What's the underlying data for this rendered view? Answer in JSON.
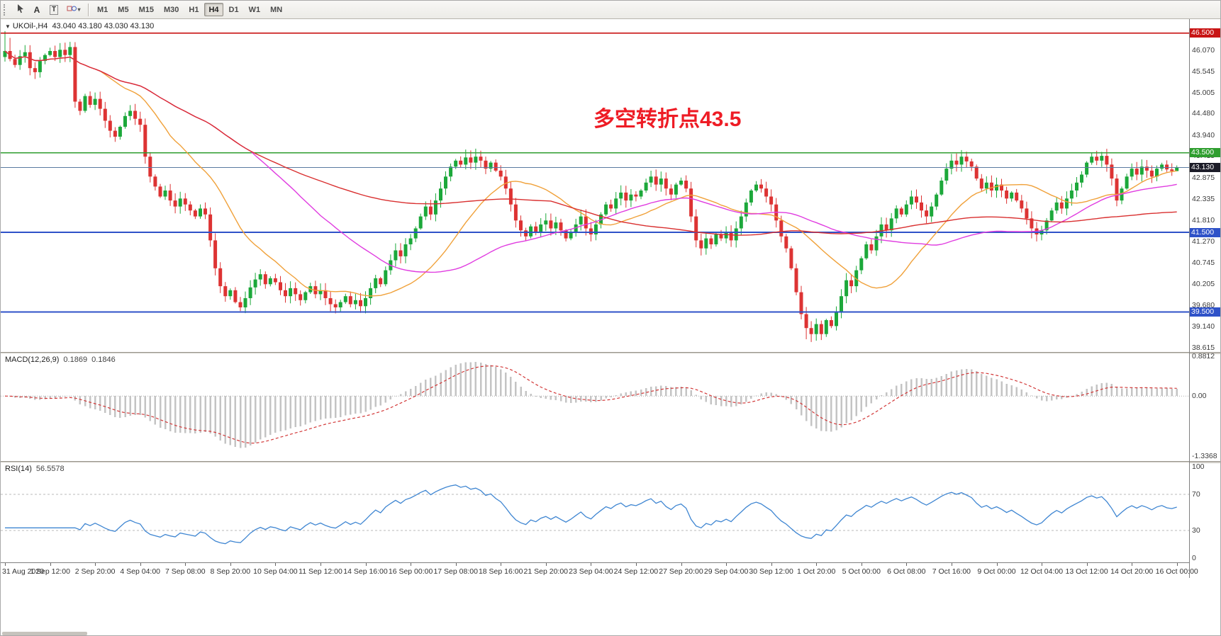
{
  "toolbar": {
    "text_tool_label": "A",
    "text_box_tool_label": "T",
    "timeframes": [
      {
        "label": "M1",
        "active": false
      },
      {
        "label": "M5",
        "active": false
      },
      {
        "label": "M15",
        "active": false
      },
      {
        "label": "M30",
        "active": false
      },
      {
        "label": "H1",
        "active": false
      },
      {
        "label": "H4",
        "active": true
      },
      {
        "label": "D1",
        "active": false
      },
      {
        "label": "W1",
        "active": false
      },
      {
        "label": "MN",
        "active": false
      }
    ]
  },
  "chart": {
    "symbol_label": "UKOil-,H4",
    "ohlc_text": "43.040 43.180 43.030 43.130",
    "annotation_text": "多空转折点43.5",
    "annotation_color": "#ee1c25",
    "price_axis_ticks": [
      "46.070",
      "45.545",
      "45.005",
      "44.480",
      "43.940",
      "43.415",
      "42.875",
      "42.335",
      "41.810",
      "41.270",
      "40.745",
      "40.205",
      "39.680",
      "39.140",
      "38.615"
    ],
    "price_badges": [
      {
        "label": "46.500",
        "price": 46.5,
        "color": "#c81414"
      },
      {
        "label": "43.500",
        "price": 43.5,
        "color": "#2f9e2f"
      },
      {
        "label": "43.130",
        "price": 43.13,
        "color": "#1c1c28"
      },
      {
        "label": "41.500",
        "price": 41.5,
        "color": "#2f52c8"
      },
      {
        "label": "39.500",
        "price": 39.5,
        "color": "#2f52c8"
      }
    ]
  },
  "macd": {
    "title": "MACD(12,26,9)",
    "value_main": "0.1869",
    "value_signal": "0.1846",
    "axis": [
      "0.8812",
      "0.00",
      "-1.3368"
    ]
  },
  "rsi": {
    "title": "RSI(14)",
    "value": "56.5578",
    "axis": [
      "100",
      "70",
      "30",
      "0"
    ]
  },
  "time_axis": {
    "labels": [
      "31 Aug 2020",
      "1 Sep 12:00",
      "2 Sep 20:00",
      "4 Sep 04:00",
      "7 Sep 08:00",
      "8 Sep 20:00",
      "10 Sep 04:00",
      "11 Sep 12:00",
      "14 Sep 16:00",
      "16 Sep 00:00",
      "17 Sep 08:00",
      "18 Sep 16:00",
      "21 Sep 20:00",
      "23 Sep 04:00",
      "24 Sep 12:00",
      "27 Sep 20:00",
      "29 Sep 04:00",
      "30 Sep 12:00",
      "1 Oct 20:00",
      "5 Oct 00:00",
      "6 Oct 08:00",
      "7 Oct 16:00",
      "9 Oct 00:00",
      "12 Oct 04:00",
      "13 Oct 12:00",
      "14 Oct 20:00",
      "16 Oct 00:00"
    ]
  },
  "chart_data": {
    "type": "candlestick",
    "symbol": "UKOil-",
    "timeframe": "H4",
    "bars": 235,
    "bars_per_time_label": 9,
    "first_open": 45.9,
    "closes": [
      46.05,
      45.85,
      45.7,
      45.92,
      46.02,
      45.62,
      45.52,
      45.8,
      45.95,
      46.05,
      45.9,
      46.08,
      45.95,
      46.15,
      44.78,
      44.55,
      44.92,
      44.7,
      44.85,
      44.6,
      44.3,
      44.05,
      43.9,
      44.15,
      44.42,
      44.55,
      44.35,
      44.2,
      43.4,
      42.9,
      42.65,
      42.4,
      42.55,
      42.3,
      42.15,
      42.35,
      42.2,
      42.05,
      41.9,
      42.1,
      41.95,
      41.3,
      40.6,
      40.15,
      39.9,
      40.05,
      39.75,
      39.62,
      39.85,
      40.12,
      40.32,
      40.45,
      40.2,
      40.35,
      40.25,
      40.05,
      39.9,
      40.1,
      39.95,
      39.8,
      40.0,
      40.15,
      39.95,
      40.05,
      39.85,
      39.7,
      39.62,
      39.75,
      39.9,
      39.7,
      39.8,
      39.65,
      39.85,
      40.1,
      40.35,
      40.2,
      40.55,
      40.8,
      41.05,
      40.9,
      41.2,
      41.35,
      41.6,
      41.9,
      42.15,
      41.95,
      42.3,
      42.6,
      42.9,
      43.15,
      43.3,
      43.2,
      43.38,
      43.25,
      43.4,
      43.3,
      43.1,
      43.25,
      43.05,
      42.9,
      42.6,
      42.2,
      41.8,
      41.55,
      41.4,
      41.65,
      41.5,
      41.7,
      41.8,
      41.6,
      41.75,
      41.55,
      41.35,
      41.5,
      41.7,
      41.9,
      41.6,
      41.45,
      41.7,
      41.95,
      42.2,
      42.1,
      42.35,
      42.5,
      42.3,
      42.45,
      42.4,
      42.55,
      42.75,
      42.9,
      42.7,
      42.85,
      42.6,
      42.45,
      42.7,
      42.8,
      42.6,
      41.9,
      41.3,
      41.1,
      41.35,
      41.2,
      41.45,
      41.35,
      41.5,
      41.3,
      41.6,
      41.9,
      42.25,
      42.55,
      42.7,
      42.6,
      42.4,
      42.2,
      41.8,
      41.4,
      41.1,
      40.6,
      40.0,
      39.45,
      39.1,
      38.95,
      39.2,
      38.95,
      39.3,
      39.15,
      39.5,
      39.9,
      40.3,
      40.15,
      40.55,
      40.85,
      41.2,
      41.05,
      41.4,
      41.7,
      41.55,
      41.85,
      42.1,
      41.95,
      42.2,
      42.4,
      42.25,
      42.05,
      41.9,
      42.15,
      42.45,
      42.8,
      43.1,
      43.3,
      43.2,
      43.4,
      43.28,
      43.15,
      42.85,
      42.6,
      42.75,
      42.55,
      42.7,
      42.55,
      42.35,
      42.5,
      42.3,
      42.1,
      41.85,
      41.6,
      41.45,
      41.55,
      41.8,
      42.05,
      42.25,
      42.1,
      42.35,
      42.55,
      42.75,
      42.95,
      43.25,
      43.4,
      43.3,
      43.42,
      43.2,
      42.85,
      42.3,
      42.6,
      42.9,
      43.1,
      42.95,
      43.15,
      43.05,
      42.9,
      43.1,
      43.2,
      43.08,
      43.04,
      43.13
    ],
    "high_overrides": {
      "0": 46.55,
      "1": 46.38,
      "13": 46.28,
      "92": 43.58,
      "94": 43.6,
      "217": 43.5,
      "219": 43.52,
      "234": 43.18
    },
    "low_overrides": {
      "160": 38.82,
      "161": 38.75,
      "163": 38.8,
      "205": 41.35,
      "234": 43.03
    },
    "last_bar_ohlc": {
      "open": 43.04,
      "high": 43.18,
      "low": 43.03,
      "close": 43.13
    },
    "price_range": [
      46.85,
      38.5
    ],
    "levels": [
      {
        "price": 46.5,
        "color": "#c40000",
        "width": 1.6
      },
      {
        "price": 43.5,
        "color": "#2f9e2f",
        "width": 1.6
      },
      {
        "price": 41.5,
        "color": "#2f52c8",
        "width": 2
      },
      {
        "price": 39.5,
        "color": "#2f52c8",
        "width": 2
      }
    ],
    "current_price_line": {
      "price": 43.13,
      "color": "#5a7aa0",
      "width": 1.2
    },
    "moving_averages": [
      {
        "period": 20,
        "color": "#f0a13a"
      },
      {
        "period": 50,
        "color": "#e03ce0"
      },
      {
        "period": 110,
        "color": "#d92f2f"
      }
    ],
    "candle_colors": {
      "up": "#1ca83a",
      "down": "#dd3333"
    },
    "macd": {
      "fast": 12,
      "slow": 26,
      "signal": 9,
      "range": [
        0.95,
        -1.45
      ],
      "histogram_color": "#c4c4c4",
      "signal_color": "#d23737"
    },
    "rsi": {
      "period": 14,
      "range": [
        105,
        -5
      ],
      "levels": [
        70,
        30
      ],
      "line_color": "#3f86d2"
    }
  }
}
